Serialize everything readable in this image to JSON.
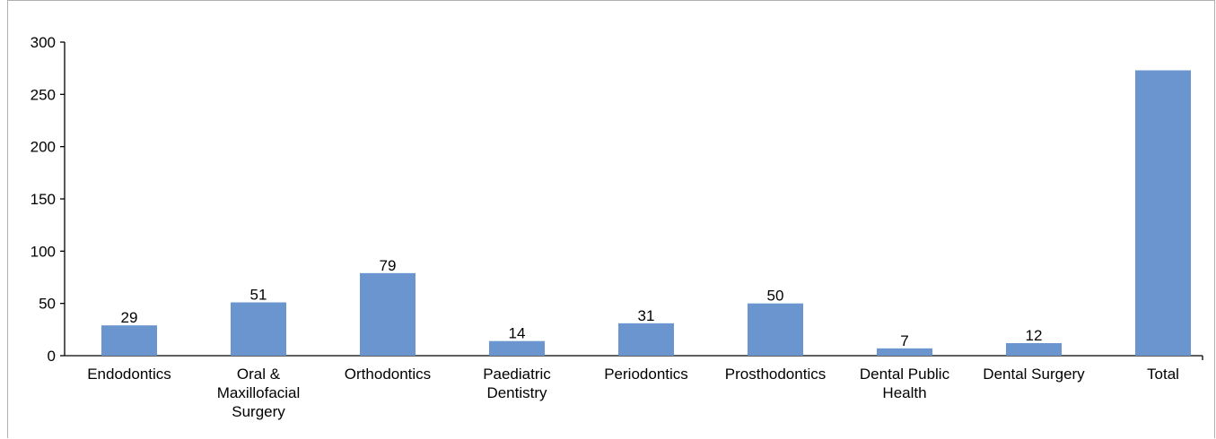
{
  "chart_data": {
    "type": "bar",
    "title": "",
    "xlabel": "",
    "ylabel": "",
    "ylim": [
      0,
      300
    ],
    "yticks": [
      0,
      50,
      100,
      150,
      200,
      250,
      300
    ],
    "grid": false,
    "legend": "none",
    "categories": [
      [
        "Endodontics"
      ],
      [
        "Oral &",
        "Maxillofacial",
        "Surgery"
      ],
      [
        "Orthodontics"
      ],
      [
        "Paediatric",
        "Dentistry"
      ],
      [
        "Periodontics"
      ],
      [
        "Prosthodontics"
      ],
      [
        "Dental Public",
        "Health"
      ],
      [
        "Dental Surgery"
      ],
      [
        "Total"
      ]
    ],
    "values": [
      29,
      51,
      79,
      14,
      31,
      50,
      7,
      12,
      273
    ],
    "data_labels": [
      "29",
      "51",
      "79",
      "14",
      "31",
      "50",
      "7",
      "12",
      ""
    ],
    "bar_color": "#6a95cf"
  }
}
